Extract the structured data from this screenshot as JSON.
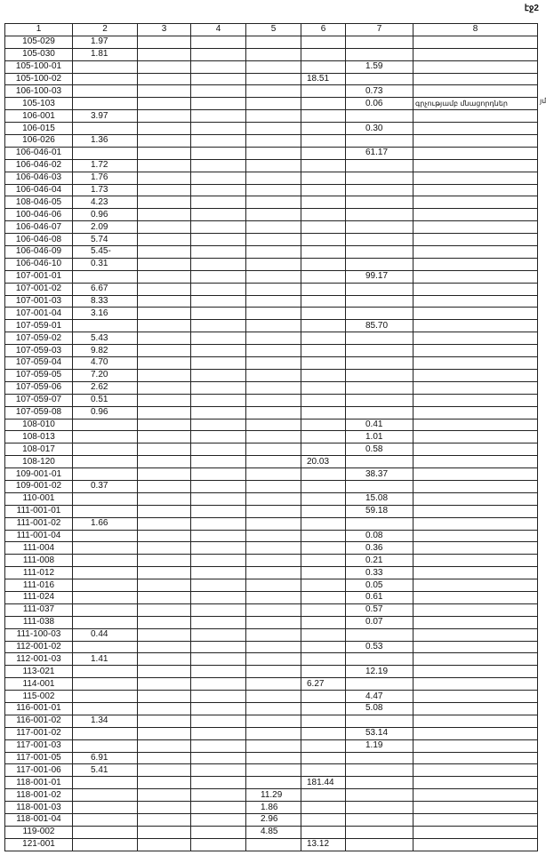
{
  "page_number": "էջ2",
  "side_note": "յմ",
  "table": {
    "headers": [
      "1",
      "2",
      "3",
      "4",
      "5",
      "6",
      "7",
      "8"
    ],
    "rows": [
      [
        "105-029",
        "1.97",
        "",
        "",
        "",
        "",
        "",
        ""
      ],
      [
        "105-030",
        "1.81",
        "",
        "",
        "",
        "",
        "",
        ""
      ],
      [
        "105-100-01",
        "",
        "",
        "",
        "",
        "",
        "1.59",
        ""
      ],
      [
        "105-100-02",
        "",
        "",
        "",
        "",
        "18.51",
        "",
        ""
      ],
      [
        "106-100-03",
        "",
        "",
        "",
        "",
        "",
        "0.73",
        ""
      ],
      [
        "105-103",
        "",
        "",
        "",
        "",
        "",
        "0.06",
        "գրչությամբ մնացորդներ"
      ],
      [
        "106-001",
        "3.97",
        "",
        "",
        "",
        "",
        "",
        ""
      ],
      [
        "106-015",
        "",
        "",
        "",
        "",
        "",
        "0.30",
        ""
      ],
      [
        "106-026",
        "1.36",
        "",
        "",
        "",
        "",
        "",
        ""
      ],
      [
        "106-046-01",
        "",
        "",
        "",
        "",
        "",
        "61.17",
        ""
      ],
      [
        "106-046-02",
        "1.72",
        "",
        "",
        "",
        "",
        "",
        ""
      ],
      [
        "106-046-03",
        "1.76",
        "",
        "",
        "",
        "",
        "",
        ""
      ],
      [
        "106-046-04",
        "1.73",
        "",
        "",
        "",
        "",
        "",
        ""
      ],
      [
        "108-046-05",
        "4.23",
        "",
        "",
        "",
        "",
        "",
        ""
      ],
      [
        "100-046-06",
        "0.96",
        "",
        "",
        "",
        "",
        "",
        ""
      ],
      [
        "106-046-07",
        "2.09",
        "",
        "",
        "",
        "",
        "",
        ""
      ],
      [
        "106-046-08",
        "5.74",
        "",
        "",
        "",
        "",
        "",
        ""
      ],
      [
        "106-046-09",
        "5.45-",
        "",
        "",
        "",
        "",
        "",
        ""
      ],
      [
        "106-046-10",
        "0.31",
        "",
        "",
        "",
        "",
        "",
        ""
      ],
      [
        "107-001-01",
        "",
        "",
        "",
        "",
        "",
        "99.17",
        ""
      ],
      [
        "107-001-02",
        "6.67",
        "",
        "",
        "",
        "",
        "",
        ""
      ],
      [
        "107-001-03",
        "8.33",
        "",
        "",
        "",
        "",
        "",
        ""
      ],
      [
        "107-001-04",
        "3.16",
        "",
        "",
        "",
        "",
        "",
        ""
      ],
      [
        "107-059-01",
        "",
        "",
        "",
        "",
        "",
        "85.70",
        ""
      ],
      [
        "107-059-02",
        "5.43",
        "",
        "",
        "",
        "",
        "",
        ""
      ],
      [
        "107-059-03",
        "9.82",
        "",
        "",
        "",
        "",
        "",
        ""
      ],
      [
        "107-059-04",
        "4.70",
        "",
        "",
        "",
        "",
        "",
        ""
      ],
      [
        "107-059-05",
        "7.20",
        "",
        "",
        "",
        "",
        "",
        ""
      ],
      [
        "107-059-06",
        "2.62",
        "",
        "",
        "",
        "",
        "",
        ""
      ],
      [
        "107-059-07",
        "0.51",
        "",
        "",
        "",
        "",
        "",
        ""
      ],
      [
        "107-059-08",
        "0.96",
        "",
        "",
        "",
        "",
        "",
        ""
      ],
      [
        "108-010",
        "",
        "",
        "",
        "",
        "",
        "0.41",
        ""
      ],
      [
        "108-013",
        "",
        "",
        "",
        "",
        "",
        "1.01",
        ""
      ],
      [
        "108-017",
        "",
        "",
        "",
        "",
        "",
        "0.58",
        ""
      ],
      [
        "108-120",
        "",
        "",
        "",
        "",
        "20.03",
        "",
        ""
      ],
      [
        "109-001-01",
        "",
        "",
        "",
        "",
        "",
        "38.37",
        ""
      ],
      [
        "109-001-02",
        "0.37",
        "",
        "",
        "",
        "",
        "",
        ""
      ],
      [
        "110-001",
        "",
        "",
        "",
        "",
        "",
        "15.08",
        ""
      ],
      [
        "111-001-01",
        "",
        "",
        "",
        "",
        "",
        "59.18",
        ""
      ],
      [
        "111-001-02",
        "1.66",
        "",
        "",
        "",
        "",
        "",
        ""
      ],
      [
        "111-001-04",
        "",
        "",
        "",
        "",
        "",
        "0.08",
        ""
      ],
      [
        "111-004",
        "",
        "",
        "",
        "",
        "",
        "0.36",
        ""
      ],
      [
        "111-008",
        "",
        "",
        "",
        "",
        "",
        "0.21",
        ""
      ],
      [
        "111-012",
        "",
        "",
        "",
        "",
        "",
        "0.33",
        ""
      ],
      [
        "111-016",
        "",
        "",
        "",
        "",
        "",
        "0.05",
        ""
      ],
      [
        "111-024",
        "",
        "",
        "",
        "",
        "",
        "0.61",
        ""
      ],
      [
        "111-037",
        "",
        "",
        "",
        "",
        "",
        "0.57",
        ""
      ],
      [
        "111-038",
        "",
        "",
        "",
        "",
        "",
        "0.07",
        ""
      ],
      [
        "111-100-03",
        "0.44",
        "",
        "",
        "",
        "",
        "",
        ""
      ],
      [
        "112-001-02",
        "",
        "",
        "",
        "",
        "",
        "0.53",
        ""
      ],
      [
        "112-001-03",
        "1.41",
        "",
        "",
        "",
        "",
        "",
        ""
      ],
      [
        "113-021",
        "",
        "",
        "",
        "",
        "",
        "12.19",
        ""
      ],
      [
        "114-001",
        "",
        "",
        "",
        "",
        "6.27",
        "",
        ""
      ],
      [
        "115-002",
        "",
        "",
        "",
        "",
        "",
        "4.47",
        ""
      ],
      [
        "116-001-01",
        "",
        "",
        "",
        "",
        "",
        "5.08",
        ""
      ],
      [
        "116-001-02",
        "1.34",
        "",
        "",
        "",
        "",
        "",
        ""
      ],
      [
        "117-001-02",
        "",
        "",
        "",
        "",
        "",
        "53.14",
        ""
      ],
      [
        "117-001-03",
        "",
        "",
        "",
        "",
        "",
        "1.19",
        ""
      ],
      [
        "117-001-05",
        "6.91",
        "",
        "",
        "",
        "",
        "",
        ""
      ],
      [
        "117-001-06",
        "5.41",
        "",
        "",
        "",
        "",
        "",
        ""
      ],
      [
        "118-001-01",
        "",
        "",
        "",
        "",
        "181.44",
        "",
        ""
      ],
      [
        "118-001-02",
        "",
        "",
        "",
        "11.29",
        "",
        "",
        ""
      ],
      [
        "118-001-03",
        "",
        "",
        "",
        "1.86",
        "",
        "",
        ""
      ],
      [
        "118-001-04",
        "",
        "",
        "",
        "2.96",
        "",
        "",
        ""
      ],
      [
        "119-002",
        "",
        "",
        "",
        "4.85",
        "",
        "",
        ""
      ],
      [
        "121-001",
        "",
        "",
        "",
        "",
        "13.12",
        "",
        ""
      ]
    ]
  }
}
